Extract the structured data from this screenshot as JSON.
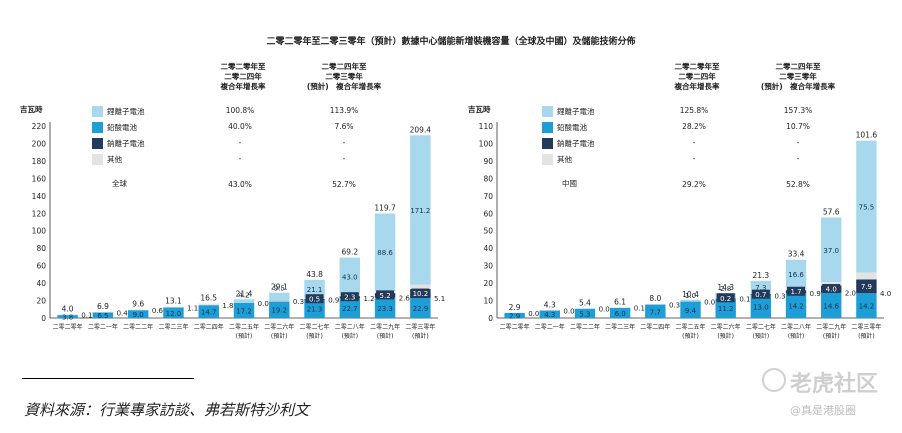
{
  "title": "二零二零年至二零三零年（預計）數據中心儲能新增裝機容量（全球及中國）及儲能技術分佈",
  "source": "資料來源：行業專家訪談、弗若斯特沙利文",
  "watermark": {
    "brand": "老虎社区",
    "handle": "@真是港股圈"
  },
  "colors": {
    "li": "#a8d8ee",
    "lead": "#1e9ed6",
    "na": "#233a5a",
    "other": "#e3e3e3"
  },
  "chart_data": [
    {
      "type": "bar",
      "stacked": true,
      "region_label": "全球",
      "ylabel": "吉瓦時",
      "ylim": [
        0,
        220
      ],
      "yticks": [
        0,
        20,
        40,
        60,
        80,
        100,
        120,
        140,
        160,
        180,
        200,
        220
      ],
      "categories": [
        "二零二零年",
        "二零二一年",
        "二零二二年",
        "二零二三年",
        "二零二四年",
        "二零二五年\n(預計)",
        "二零二六年\n(預計)",
        "二零二七年\n(預計)",
        "二零二八年\n(預計)",
        "二零二九年\n(預計)",
        "二零三零年\n(預計)"
      ],
      "cagr_headers": [
        "二零二零年至\n二零二四年\n複合年增長率",
        "二零二四年至\n二零三零年\n(預計)　複合年增長率"
      ],
      "series": [
        {
          "name": "鋰離子電池",
          "values": [
            0,
            0,
            0,
            0,
            0,
            4.2,
            9.5,
            21.1,
            43.0,
            88.6,
            171.2
          ],
          "rates": [
            "100.8%",
            "113.9%"
          ]
        },
        {
          "name": "鉛酸電池",
          "values": [
            3.8,
            6.5,
            9.0,
            12.0,
            14.7,
            17.2,
            19.2,
            21.3,
            22.7,
            23.3,
            22.9
          ],
          "rates": [
            "40.0%",
            "7.6%"
          ]
        },
        {
          "name": "鈉離子電池",
          "values": [
            0,
            0,
            0,
            0,
            0,
            0,
            0,
            0.5,
            2.3,
            5.2,
            10.2
          ],
          "rates": [
            "-",
            "-"
          ]
        },
        {
          "name": "其他",
          "values": [
            0.1,
            0.4,
            0.6,
            1.1,
            1.8,
            0,
            0.3,
            0.9,
            1.2,
            2.6,
            5.1
          ],
          "rates": [
            "-",
            "-"
          ]
        }
      ],
      "totals": [
        4.0,
        6.9,
        9.6,
        13.1,
        16.5,
        21.4,
        29.1,
        43.8,
        69.2,
        119.7,
        209.4
      ],
      "total_rates": [
        "43.0%",
        "52.7%"
      ]
    },
    {
      "type": "bar",
      "stacked": true,
      "region_label": "中國",
      "ylabel": "吉瓦時",
      "ylim": [
        0,
        110
      ],
      "yticks": [
        0,
        10,
        20,
        30,
        40,
        50,
        60,
        70,
        80,
        90,
        100,
        110
      ],
      "categories": [
        "二零二零年",
        "二零二一年",
        "二零二二年",
        "二零二三年",
        "二零二四年",
        "二零二五年\n(預計)",
        "二零二六年\n(預計)",
        "二零二七年\n(預計)",
        "二零二八年\n(預計)",
        "二零二九年\n(預計)",
        "二零三零年\n(預計)"
      ],
      "cagr_headers": [
        "二零二零年至\n二零二四年\n複合年增長率",
        "二零二四年至\n二零三零年\n(預計)　複合年增長率"
      ],
      "series": [
        {
          "name": "鋰離子電池",
          "values": [
            0,
            0,
            0,
            0,
            0,
            1.0,
            2.8,
            7.3,
            16.6,
            37.0,
            75.5
          ],
          "rates": [
            "125.8%",
            "157.3%"
          ]
        },
        {
          "name": "鉛酸電池",
          "values": [
            2.9,
            4.3,
            5.3,
            6.0,
            7.7,
            9.4,
            11.2,
            13.0,
            14.2,
            14.6,
            14.2
          ],
          "rates": [
            "28.2%",
            "10.7%"
          ]
        },
        {
          "name": "鈉離子電池",
          "values": [
            0,
            0,
            0,
            0,
            0,
            0,
            0.2,
            0.7,
            1.7,
            4.0,
            7.9
          ],
          "rates": [
            "-",
            "-"
          ]
        },
        {
          "name": "其他",
          "values": [
            0.0,
            0.0,
            0.0,
            0.1,
            0.3,
            0,
            0.1,
            0.3,
            0.9,
            2.0,
            4.0
          ],
          "rates": [
            "-",
            "-"
          ]
        }
      ],
      "totals": [
        2.9,
        4.3,
        5.4,
        6.1,
        8.0,
        10.4,
        14.3,
        21.3,
        33.4,
        57.6,
        101.6
      ],
      "total_rates": [
        "29.2%",
        "52.8%"
      ]
    }
  ]
}
